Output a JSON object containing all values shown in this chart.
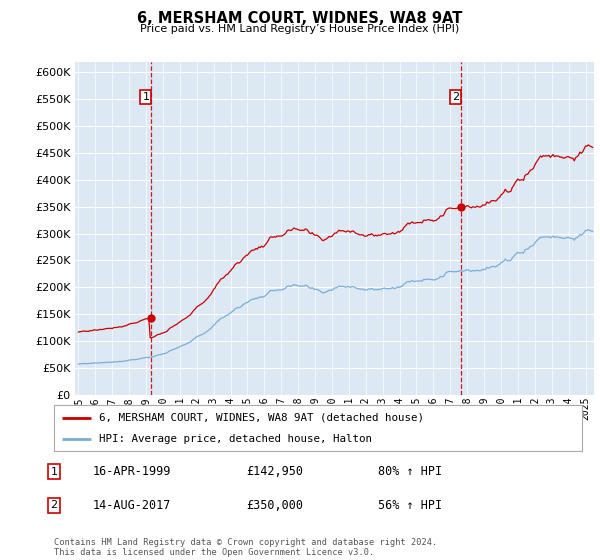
{
  "title": "6, MERSHAM COURT, WIDNES, WA8 9AT",
  "subtitle": "Price paid vs. HM Land Registry’s House Price Index (HPI)",
  "ylim": [
    0,
    620000
  ],
  "yticks": [
    0,
    50000,
    100000,
    150000,
    200000,
    250000,
    300000,
    350000,
    400000,
    450000,
    500000,
    550000,
    600000
  ],
  "ytick_labels": [
    "£0",
    "£50K",
    "£100K",
    "£150K",
    "£200K",
    "£250K",
    "£300K",
    "£350K",
    "£400K",
    "£450K",
    "£500K",
    "£550K",
    "£600K"
  ],
  "xlim_start": 1994.8,
  "xlim_end": 2025.5,
  "plot_bg_color": "#dce9f5",
  "red_color": "#cc0000",
  "blue_color": "#7aaed6",
  "sale1_year": 1999.29,
  "sale1_price": 142950,
  "sale2_year": 2017.62,
  "sale2_price": 350000,
  "legend_label_red": "6, MERSHAM COURT, WIDNES, WA8 9AT (detached house)",
  "legend_label_blue": "HPI: Average price, detached house, Halton",
  "footer": "Contains HM Land Registry data © Crown copyright and database right 2024.\nThis data is licensed under the Open Government Licence v3.0.",
  "annotation1_date": "16-APR-1999",
  "annotation1_price": "£142,950",
  "annotation1_hpi": "80% ↑ HPI",
  "annotation2_date": "14-AUG-2017",
  "annotation2_price": "£350,000",
  "annotation2_hpi": "56% ↑ HPI"
}
